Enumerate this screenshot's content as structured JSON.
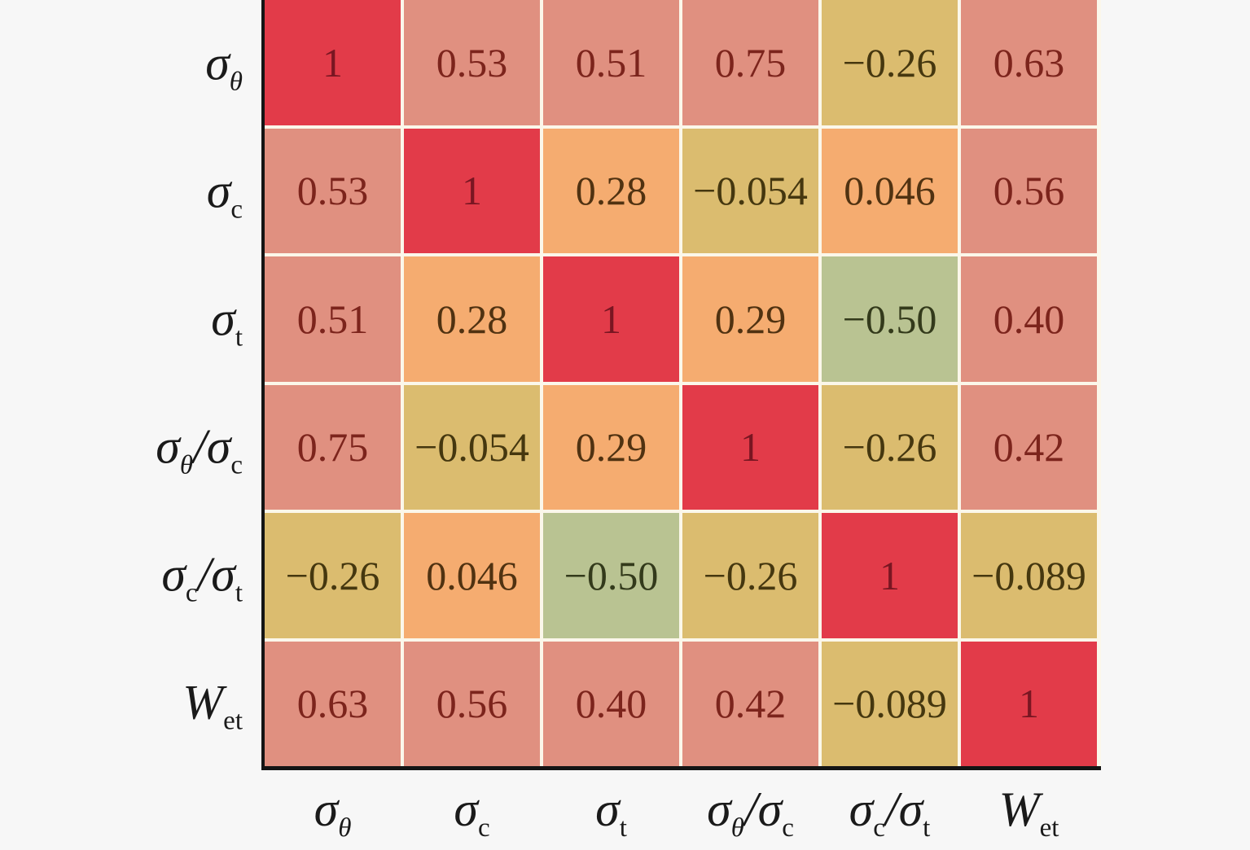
{
  "chart_data": {
    "type": "heatmap",
    "title": "",
    "xlabel": "",
    "ylabel": "",
    "grid": false,
    "legend": "none",
    "variables_plain": [
      "σθ",
      "σc",
      "σt",
      "σθ/σc",
      "σc/σt",
      "Wet"
    ],
    "variables_rich": [
      {
        "parts": [
          {
            "text": "σ",
            "italic": true
          },
          {
            "text": "θ",
            "sub": true,
            "italic": true
          }
        ]
      },
      {
        "parts": [
          {
            "text": "σ",
            "italic": true
          },
          {
            "text": "c",
            "sub": true,
            "italic": false
          }
        ]
      },
      {
        "parts": [
          {
            "text": "σ",
            "italic": true
          },
          {
            "text": "t",
            "sub": true,
            "italic": false
          }
        ]
      },
      {
        "parts": [
          {
            "text": "σ",
            "italic": true
          },
          {
            "text": "θ",
            "sub": true,
            "italic": true
          },
          {
            "text": "/",
            "italic": true
          },
          {
            "text": "σ",
            "italic": true
          },
          {
            "text": "c",
            "sub": true,
            "italic": false
          }
        ]
      },
      {
        "parts": [
          {
            "text": "σ",
            "italic": true
          },
          {
            "text": "c",
            "sub": true,
            "italic": false
          },
          {
            "text": "/",
            "italic": true
          },
          {
            "text": "σ",
            "italic": true
          },
          {
            "text": "t",
            "sub": true,
            "italic": false
          }
        ]
      },
      {
        "parts": [
          {
            "text": "W",
            "italic": true
          },
          {
            "text": "et",
            "sub": true,
            "italic": false
          }
        ]
      }
    ],
    "values": [
      [
        1,
        0.53,
        0.51,
        0.75,
        -0.26,
        0.63
      ],
      [
        0.53,
        1,
        0.28,
        -0.054,
        0.046,
        0.56
      ],
      [
        0.51,
        0.28,
        1,
        0.29,
        -0.5,
        0.4
      ],
      [
        0.75,
        -0.054,
        0.29,
        1,
        -0.26,
        0.42
      ],
      [
        -0.26,
        0.046,
        -0.5,
        -0.26,
        1,
        -0.089
      ],
      [
        0.63,
        0.56,
        0.4,
        0.42,
        -0.089,
        1
      ]
    ],
    "display": [
      [
        "1",
        "0.53",
        "0.51",
        "0.75",
        "−0.26",
        "0.63"
      ],
      [
        "0.53",
        "1",
        "0.28",
        "−0.054",
        "0.046",
        "0.56"
      ],
      [
        "0.51",
        "0.28",
        "1",
        "0.29",
        "−0.50",
        "0.40"
      ],
      [
        "0.75",
        "−0.054",
        "0.29",
        "1",
        "−0.26",
        "0.42"
      ],
      [
        "−0.26",
        "0.046",
        "−0.50",
        "−0.26",
        "1",
        "−0.089"
      ],
      [
        "0.63",
        "0.56",
        "0.40",
        "0.42",
        "−0.089",
        "1"
      ]
    ],
    "value_range": [
      -1,
      1
    ],
    "color_scale": {
      "bins": [
        {
          "min": 0.9,
          "bg": "#E23B49",
          "fg": "#791622",
          "name": "strong-red"
        },
        {
          "min": 0.35,
          "bg": "#E09080",
          "fg": "#7C241C",
          "name": "salmon"
        },
        {
          "min": 0.0,
          "bg": "#F5AC70",
          "fg": "#503211",
          "name": "orange"
        },
        {
          "min": -0.35,
          "bg": "#DBBC6F",
          "fg": "#45370F",
          "name": "tan"
        },
        {
          "min": -1.0,
          "bg": "#B9C392",
          "fg": "#333A1B",
          "name": "green"
        }
      ]
    },
    "style": {
      "background": "#F7F7F7",
      "cell_gap_color": "#FBF7EA",
      "spine_color": "#141414",
      "label_color": "#1a1a1a"
    }
  }
}
